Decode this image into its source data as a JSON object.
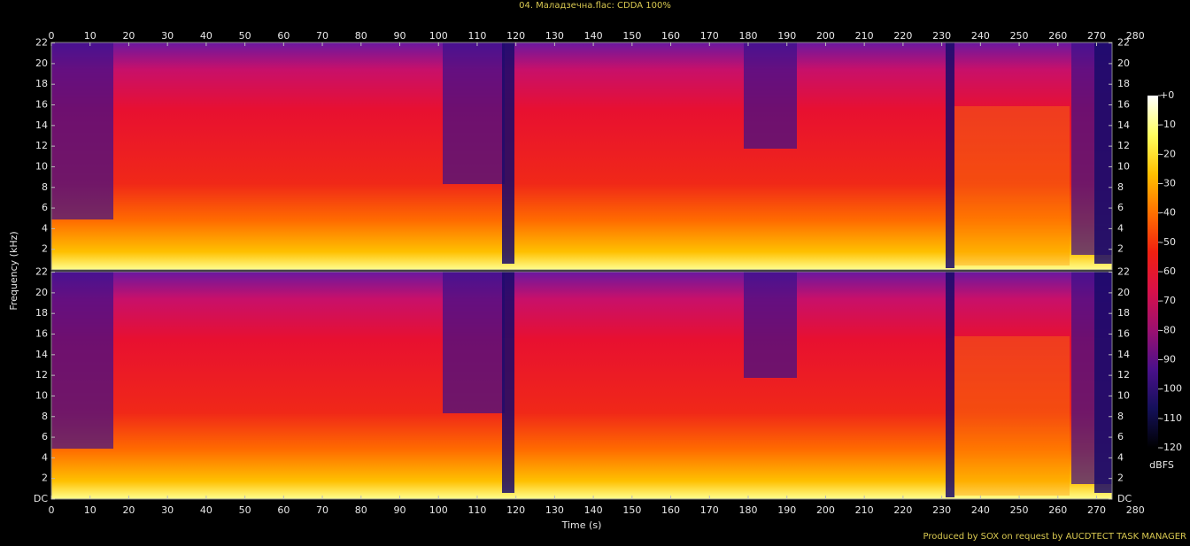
{
  "chart_data": {
    "type": "spectrogram",
    "title": "04. Маладзечна.flac: CDDA 100%",
    "xlabel": "Time (s)",
    "ylabel": "Frequency (kHz)",
    "xlim": [
      0,
      274
    ],
    "xticks": [
      0,
      10,
      20,
      30,
      40,
      50,
      60,
      70,
      80,
      90,
      100,
      110,
      120,
      130,
      140,
      150,
      160,
      170,
      180,
      190,
      200,
      210,
      220,
      230,
      240,
      250,
      260,
      270,
      280
    ],
    "ylim": [
      0,
      22.05
    ],
    "channels": [
      {
        "yticks": [
          2,
          4,
          6,
          8,
          10,
          12,
          14,
          16,
          18,
          20,
          22
        ]
      },
      {
        "yticks": [
          {
            "value": 0,
            "label": "DC"
          },
          2,
          4,
          6,
          8,
          10,
          12,
          14,
          16,
          18,
          20,
          22
        ]
      }
    ],
    "colorbar": {
      "label": "dBFS",
      "lim": [
        -120,
        0
      ],
      "ticks": [
        {
          "value": 0,
          "label": "+0"
        },
        -10,
        -20,
        -30,
        -40,
        -50,
        -60,
        -70,
        -80,
        -90,
        -100,
        -110,
        -120
      ],
      "colors": [
        "#000000",
        "#14105a",
        "#4a108a",
        "#9a1070",
        "#d8104a",
        "#f02010",
        "#ff7000",
        "#ffc000",
        "#ffff60",
        "#ffffff"
      ]
    },
    "footer": "Produced by SOX on request by AUCDTECT TASK MANAGER"
  }
}
